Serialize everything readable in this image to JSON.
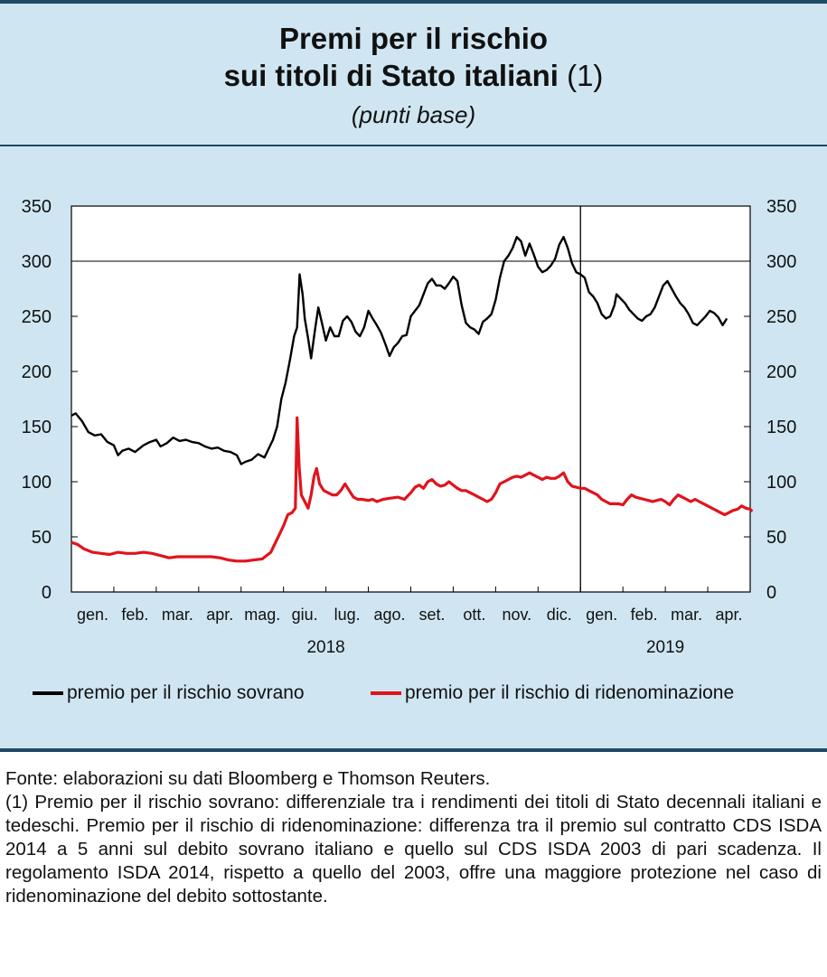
{
  "header": {
    "title_line1": "Premi per il rischio",
    "title_line2": "sui titoli di Stato italiani",
    "title_note": "(1)",
    "subtitle": "(punti base)"
  },
  "chart_data": {
    "type": "line",
    "ylim": [
      0,
      350
    ],
    "yticks": [
      0,
      50,
      100,
      150,
      200,
      250,
      300,
      350
    ],
    "months": [
      "gen.",
      "feb.",
      "mar.",
      "apr.",
      "mag.",
      "giu.",
      "lug.",
      "ago.",
      "set.",
      "ott.",
      "nov.",
      "dic.",
      "gen.",
      "feb.",
      "mar.",
      "apr."
    ],
    "years": [
      "2018",
      "2019"
    ],
    "x_unit": "months since 1 Jan 2018",
    "reference_line_y": 300,
    "year_divider_x": 12,
    "series": [
      {
        "name": "premio per il rischio sovrano",
        "color": "#000000",
        "points": [
          [
            0,
            160
          ],
          [
            0.1,
            162
          ],
          [
            0.25,
            155
          ],
          [
            0.4,
            145
          ],
          [
            0.55,
            142
          ],
          [
            0.7,
            143
          ],
          [
            0.85,
            136
          ],
          [
            1.0,
            133
          ],
          [
            1.1,
            124
          ],
          [
            1.2,
            128
          ],
          [
            1.35,
            130
          ],
          [
            1.5,
            127
          ],
          [
            1.7,
            133
          ],
          [
            1.85,
            136
          ],
          [
            2.0,
            138
          ],
          [
            2.1,
            132
          ],
          [
            2.25,
            135
          ],
          [
            2.4,
            140
          ],
          [
            2.55,
            137
          ],
          [
            2.7,
            138
          ],
          [
            2.85,
            136
          ],
          [
            3.0,
            135
          ],
          [
            3.15,
            132
          ],
          [
            3.3,
            130
          ],
          [
            3.45,
            131
          ],
          [
            3.6,
            128
          ],
          [
            3.75,
            127
          ],
          [
            3.9,
            124
          ],
          [
            4.0,
            116
          ],
          [
            4.1,
            118
          ],
          [
            4.25,
            120
          ],
          [
            4.4,
            125
          ],
          [
            4.55,
            122
          ],
          [
            4.65,
            130
          ],
          [
            4.75,
            138
          ],
          [
            4.85,
            150
          ],
          [
            4.95,
            175
          ],
          [
            5.05,
            190
          ],
          [
            5.15,
            210
          ],
          [
            5.25,
            232
          ],
          [
            5.32,
            240
          ],
          [
            5.38,
            288
          ],
          [
            5.45,
            270
          ],
          [
            5.5,
            248
          ],
          [
            5.58,
            230
          ],
          [
            5.65,
            212
          ],
          [
            5.75,
            240
          ],
          [
            5.82,
            258
          ],
          [
            5.9,
            245
          ],
          [
            6.0,
            228
          ],
          [
            6.1,
            240
          ],
          [
            6.2,
            232
          ],
          [
            6.3,
            232
          ],
          [
            6.4,
            246
          ],
          [
            6.5,
            250
          ],
          [
            6.6,
            245
          ],
          [
            6.7,
            236
          ],
          [
            6.8,
            232
          ],
          [
            6.9,
            240
          ],
          [
            7.0,
            255
          ],
          [
            7.1,
            248
          ],
          [
            7.2,
            242
          ],
          [
            7.3,
            235
          ],
          [
            7.4,
            225
          ],
          [
            7.5,
            214
          ],
          [
            7.6,
            222
          ],
          [
            7.7,
            226
          ],
          [
            7.8,
            232
          ],
          [
            7.9,
            233
          ],
          [
            8.0,
            250
          ],
          [
            8.1,
            255
          ],
          [
            8.2,
            260
          ],
          [
            8.3,
            270
          ],
          [
            8.4,
            280
          ],
          [
            8.5,
            284
          ],
          [
            8.6,
            278
          ],
          [
            8.7,
            278
          ],
          [
            8.8,
            275
          ],
          [
            8.9,
            280
          ],
          [
            9.0,
            286
          ],
          [
            9.1,
            282
          ],
          [
            9.2,
            260
          ],
          [
            9.3,
            244
          ],
          [
            9.4,
            240
          ],
          [
            9.5,
            238
          ],
          [
            9.6,
            234
          ],
          [
            9.7,
            245
          ],
          [
            9.8,
            248
          ],
          [
            9.9,
            252
          ],
          [
            10.0,
            265
          ],
          [
            10.1,
            285
          ],
          [
            10.2,
            300
          ],
          [
            10.3,
            305
          ],
          [
            10.4,
            312
          ],
          [
            10.5,
            322
          ],
          [
            10.6,
            318
          ],
          [
            10.7,
            305
          ],
          [
            10.8,
            316
          ],
          [
            10.9,
            306
          ],
          [
            11.0,
            295
          ],
          [
            11.1,
            290
          ],
          [
            11.2,
            292
          ],
          [
            11.3,
            296
          ],
          [
            11.4,
            302
          ],
          [
            11.5,
            315
          ],
          [
            11.6,
            322
          ],
          [
            11.7,
            312
          ],
          [
            11.8,
            298
          ],
          [
            11.9,
            290
          ],
          [
            12.0,
            288
          ],
          [
            12.1,
            285
          ],
          [
            12.2,
            272
          ],
          [
            12.3,
            268
          ],
          [
            12.4,
            262
          ],
          [
            12.5,
            252
          ],
          [
            12.6,
            248
          ],
          [
            12.7,
            250
          ],
          [
            12.8,
            260
          ],
          [
            12.85,
            270
          ],
          [
            12.95,
            266
          ],
          [
            13.05,
            262
          ],
          [
            13.15,
            256
          ],
          [
            13.25,
            252
          ],
          [
            13.35,
            248
          ],
          [
            13.45,
            246
          ],
          [
            13.55,
            250
          ],
          [
            13.65,
            252
          ],
          [
            13.75,
            258
          ],
          [
            13.85,
            268
          ],
          [
            13.95,
            278
          ],
          [
            14.05,
            282
          ],
          [
            14.15,
            275
          ],
          [
            14.25,
            268
          ],
          [
            14.35,
            262
          ],
          [
            14.45,
            258
          ],
          [
            14.55,
            252
          ],
          [
            14.65,
            244
          ],
          [
            14.75,
            242
          ],
          [
            14.85,
            246
          ],
          [
            14.95,
            250
          ],
          [
            15.05,
            255
          ],
          [
            15.15,
            253
          ],
          [
            15.25,
            249
          ],
          [
            15.35,
            242
          ],
          [
            15.45,
            248
          ]
        ]
      },
      {
        "name": "premio per il rischio di ridenominazione",
        "color": "#e0141c",
        "points": [
          [
            0,
            45
          ],
          [
            0.15,
            43
          ],
          [
            0.3,
            39
          ],
          [
            0.5,
            36
          ],
          [
            0.7,
            35
          ],
          [
            0.9,
            34
          ],
          [
            1.1,
            36
          ],
          [
            1.3,
            35
          ],
          [
            1.5,
            35
          ],
          [
            1.7,
            36
          ],
          [
            1.9,
            35
          ],
          [
            2.1,
            33
          ],
          [
            2.3,
            31
          ],
          [
            2.5,
            32
          ],
          [
            2.7,
            32
          ],
          [
            2.9,
            32
          ],
          [
            3.1,
            32
          ],
          [
            3.3,
            32
          ],
          [
            3.5,
            31
          ],
          [
            3.7,
            29
          ],
          [
            3.9,
            28
          ],
          [
            4.1,
            28
          ],
          [
            4.3,
            29
          ],
          [
            4.5,
            30
          ],
          [
            4.6,
            33
          ],
          [
            4.7,
            36
          ],
          [
            4.8,
            44
          ],
          [
            4.9,
            52
          ],
          [
            5.0,
            60
          ],
          [
            5.1,
            70
          ],
          [
            5.2,
            72
          ],
          [
            5.28,
            76
          ],
          [
            5.32,
            158
          ],
          [
            5.37,
            112
          ],
          [
            5.42,
            88
          ],
          [
            5.5,
            82
          ],
          [
            5.58,
            76
          ],
          [
            5.65,
            88
          ],
          [
            5.72,
            105
          ],
          [
            5.78,
            112
          ],
          [
            5.85,
            98
          ],
          [
            5.95,
            92
          ],
          [
            6.05,
            90
          ],
          [
            6.15,
            88
          ],
          [
            6.25,
            88
          ],
          [
            6.35,
            92
          ],
          [
            6.45,
            98
          ],
          [
            6.55,
            92
          ],
          [
            6.65,
            86
          ],
          [
            6.75,
            84
          ],
          [
            6.85,
            84
          ],
          [
            7.0,
            83
          ],
          [
            7.1,
            84
          ],
          [
            7.2,
            82
          ],
          [
            7.35,
            84
          ],
          [
            7.5,
            85
          ],
          [
            7.7,
            86
          ],
          [
            7.85,
            84
          ],
          [
            8.0,
            90
          ],
          [
            8.1,
            95
          ],
          [
            8.2,
            97
          ],
          [
            8.3,
            94
          ],
          [
            8.4,
            100
          ],
          [
            8.5,
            102
          ],
          [
            8.6,
            98
          ],
          [
            8.7,
            96
          ],
          [
            8.8,
            97
          ],
          [
            8.9,
            100
          ],
          [
            9.0,
            97
          ],
          [
            9.1,
            94
          ],
          [
            9.2,
            92
          ],
          [
            9.3,
            92
          ],
          [
            9.4,
            90
          ],
          [
            9.5,
            88
          ],
          [
            9.6,
            86
          ],
          [
            9.7,
            84
          ],
          [
            9.8,
            82
          ],
          [
            9.9,
            84
          ],
          [
            10.0,
            90
          ],
          [
            10.1,
            98
          ],
          [
            10.2,
            100
          ],
          [
            10.3,
            102
          ],
          [
            10.4,
            104
          ],
          [
            10.5,
            105
          ],
          [
            10.6,
            104
          ],
          [
            10.7,
            106
          ],
          [
            10.8,
            108
          ],
          [
            10.9,
            106
          ],
          [
            11.0,
            104
          ],
          [
            11.1,
            102
          ],
          [
            11.2,
            104
          ],
          [
            11.3,
            103
          ],
          [
            11.4,
            103
          ],
          [
            11.5,
            105
          ],
          [
            11.6,
            108
          ],
          [
            11.7,
            100
          ],
          [
            11.8,
            96
          ],
          [
            11.9,
            95
          ],
          [
            12.0,
            94
          ],
          [
            12.1,
            94
          ],
          [
            12.2,
            92
          ],
          [
            12.3,
            90
          ],
          [
            12.4,
            88
          ],
          [
            12.5,
            84
          ],
          [
            12.6,
            82
          ],
          [
            12.7,
            80
          ],
          [
            12.8,
            80
          ],
          [
            12.9,
            80
          ],
          [
            13.0,
            79
          ],
          [
            13.1,
            84
          ],
          [
            13.2,
            88
          ],
          [
            13.3,
            86
          ],
          [
            13.4,
            85
          ],
          [
            13.5,
            84
          ],
          [
            13.6,
            83
          ],
          [
            13.7,
            82
          ],
          [
            13.8,
            83
          ],
          [
            13.9,
            84
          ],
          [
            14.0,
            82
          ],
          [
            14.1,
            79
          ],
          [
            14.2,
            84
          ],
          [
            14.3,
            88
          ],
          [
            14.4,
            86
          ],
          [
            14.5,
            84
          ],
          [
            14.6,
            82
          ],
          [
            14.7,
            84
          ],
          [
            14.8,
            82
          ],
          [
            14.9,
            80
          ],
          [
            15.0,
            78
          ],
          [
            15.1,
            76
          ],
          [
            15.2,
            74
          ],
          [
            15.3,
            72
          ],
          [
            15.4,
            70
          ],
          [
            15.5,
            72
          ],
          [
            15.6,
            74
          ],
          [
            15.7,
            75
          ],
          [
            15.8,
            78
          ],
          [
            15.9,
            76
          ],
          [
            16.0,
            75
          ],
          [
            16.05,
            73
          ]
        ]
      }
    ]
  },
  "legend": {
    "sovereign": "premio per il rischio sovrano",
    "redenomination": "premio per il rischio di ridenominazione"
  },
  "footnotes": {
    "source": "Fonte: elaborazioni su dati Bloomberg e Thomson Reuters.",
    "note1": "(1) Premio per il rischio sovrano: differenziale tra i rendimenti dei titoli di Stato decennali italiani e tedeschi. Premio per il rischio di ridenominazione: differenza tra il premio sul contratto CDS ISDA 2014 a 5 anni sul debito sovrano italiano e quello sul CDS ISDA 2003 di pari scadenza. Il regolamento ISDA 2014, rispetto a quello del 2003, offre una maggiore protezione nel caso di ridenominazione del debito sottostante."
  }
}
